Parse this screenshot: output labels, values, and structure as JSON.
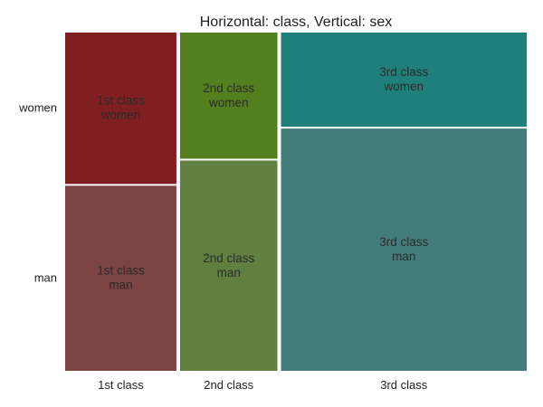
{
  "chart_data": {
    "type": "mosaic",
    "title": "Horizontal: class, Vertical: sex",
    "categories": [
      "1st class",
      "2nd class",
      "3rd class"
    ],
    "groups": [
      "women",
      "man"
    ],
    "column_widths": [
      0.24,
      0.21,
      0.53
    ],
    "cells": [
      {
        "category": "1st class",
        "segments": [
          {
            "group": "women",
            "share": 0.45,
            "label": [
              "1st class",
              "women"
            ],
            "color": "#7f1f22"
          },
          {
            "group": "man",
            "share": 0.55,
            "label": [
              "1st class",
              "man"
            ],
            "color": "#7c4343"
          }
        ]
      },
      {
        "category": "2nd class",
        "segments": [
          {
            "group": "women",
            "share": 0.375,
            "label": [
              "2nd class",
              "women"
            ],
            "color": "#537f1e"
          },
          {
            "group": "man",
            "share": 0.625,
            "label": [
              "2nd class",
              "man"
            ],
            "color": "#627f42"
          }
        ]
      },
      {
        "category": "3rd class",
        "segments": [
          {
            "group": "women",
            "share": 0.28,
            "label": [
              "3rd class",
              "women"
            ],
            "color": "#1e7f7b"
          },
          {
            "group": "man",
            "share": 0.72,
            "label": [
              "3rd class",
              "man"
            ],
            "color": "#427c7b"
          }
        ]
      }
    ],
    "y_tick_labels": [
      "women",
      "man"
    ],
    "legend": "none",
    "grid": false
  }
}
